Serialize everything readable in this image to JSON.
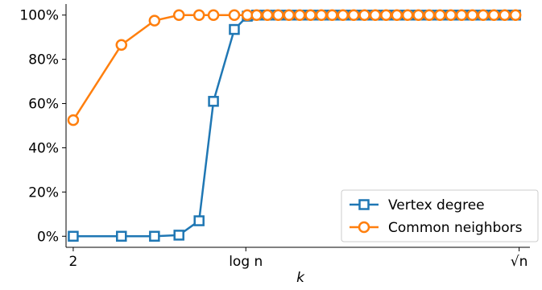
{
  "chart_data": {
    "type": "line",
    "xlabel": "k",
    "ylabel": "",
    "title": "",
    "ylim": [
      -0.05,
      1.05
    ],
    "y_ticks": [
      0,
      0.2,
      0.4,
      0.6,
      0.8,
      1.0
    ],
    "y_tick_labels": [
      "0%",
      "20%",
      "40%",
      "60%",
      "80%",
      "100%"
    ],
    "x_ticks": [
      {
        "x": 2,
        "label": "2"
      },
      {
        "x": 26,
        "label": "log n"
      },
      {
        "x": 64,
        "label": "√n"
      }
    ],
    "xlim": [
      1.0,
      65.5
    ],
    "legend_position": "lower-right",
    "colors": {
      "vertex": "#1f77b4",
      "common": "#ff7f0e"
    },
    "series": [
      {
        "name": "Vertex degree",
        "marker": "square",
        "x": [
          2,
          8.7,
          13.3,
          16.7,
          19.5,
          21.5,
          24.4,
          26.2,
          27.5,
          29,
          30.5,
          32,
          33.5,
          35,
          36.5,
          38,
          39.5,
          41,
          42.5,
          44,
          45.5,
          47,
          48.5,
          50,
          51.5,
          53,
          54.5,
          56,
          57.5,
          59,
          60.5,
          62,
          63.5
        ],
        "values": [
          0,
          0,
          0,
          0.005,
          0.07,
          0.61,
          0.935,
          0.995,
          1,
          1,
          1,
          1,
          1,
          1,
          1,
          1,
          1,
          1,
          1,
          1,
          1,
          1,
          1,
          1,
          1,
          1,
          1,
          1,
          1,
          1,
          1,
          1,
          1
        ]
      },
      {
        "name": "Common neighbors",
        "marker": "circle",
        "x": [
          2,
          8.7,
          13.3,
          16.7,
          19.5,
          21.5,
          24.4,
          26.2,
          27.5,
          29,
          30.5,
          32,
          33.5,
          35,
          36.5,
          38,
          39.5,
          41,
          42.5,
          44,
          45.5,
          47,
          48.5,
          50,
          51.5,
          53,
          54.5,
          56,
          57.5,
          59,
          60.5,
          62,
          63.5
        ],
        "values": [
          0.525,
          0.865,
          0.975,
          1,
          1,
          1,
          1,
          1,
          1,
          1,
          1,
          1,
          1,
          1,
          1,
          1,
          1,
          1,
          1,
          1,
          1,
          1,
          1,
          1,
          1,
          1,
          1,
          1,
          1,
          1,
          1,
          1,
          1
        ]
      }
    ]
  }
}
